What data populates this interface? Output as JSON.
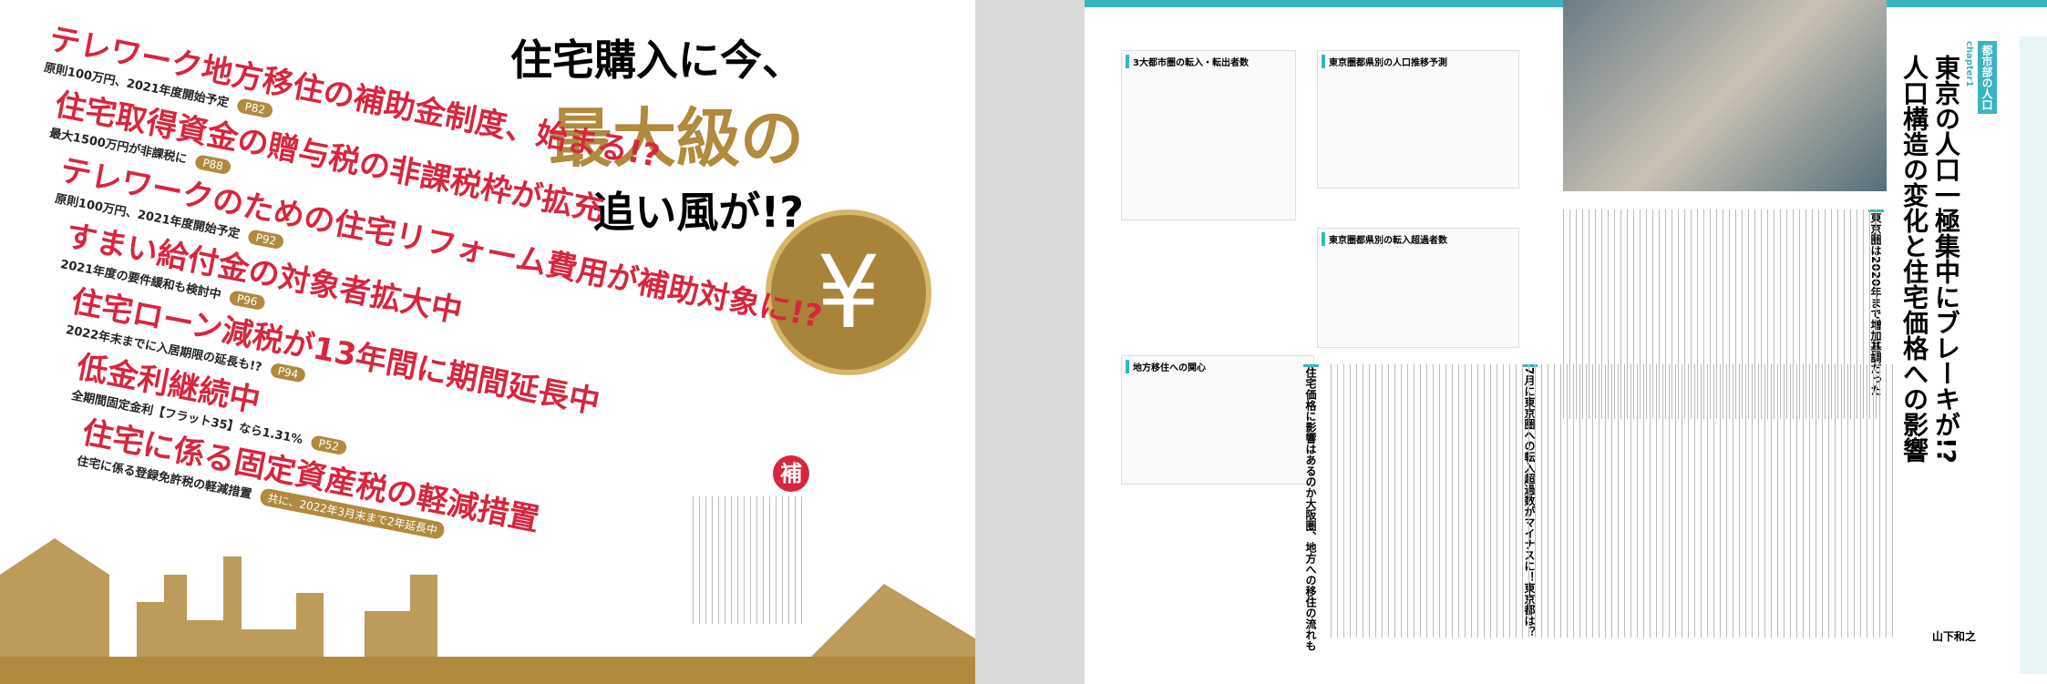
{
  "left_page": {
    "title": [
      "住宅購入に今、",
      "最大級の",
      "追い風が!?"
    ],
    "headlines": [
      {
        "title": "テレワーク地方移住の補助金制度、始まる!?",
        "lead": "原則100万円、2021年度開始予定",
        "page": "P82"
      },
      {
        "title": "住宅取得資金の贈与税の非課税枠が拡充",
        "lead": "最大1500万円が非課税に",
        "page": "P88"
      },
      {
        "title": "テレワークのための住宅リフォーム費用が補助対象に!?",
        "lead": "原則100万円、2021年度開始予定",
        "page": "P92"
      },
      {
        "title": "すまい給付金の対象者拡大中",
        "lead": "2021年度の要件緩和も検討中",
        "page": "P96"
      },
      {
        "title": "住宅ローン減税が13年間に期間延長中",
        "lead": "2022年末までに入居期限の延長も!?",
        "page": "P94"
      },
      {
        "title": "低金利継続中",
        "lead": "全期間固定金利【フラット35】なら1.31%",
        "page": "P52"
      },
      {
        "title": "住宅に係る固定資産税の軽減措置",
        "lead": "住宅に係る登録免許税の軽減措置",
        "page": "共に、2022年3月末まで2年延長中"
      }
    ],
    "coin": "¥",
    "badge": "補"
  },
  "right_page": {
    "chapter": "chapter1",
    "section": "都市部の人口",
    "headline": "東京の人口一極集中にブレーキが!?",
    "subhead": "人口構造の変化と住宅価格への影響",
    "charts": [
      "3大都市圏の転入・転出者数",
      "東京圏都県別の人口推移予測",
      "東京圏都県別の転入超過者数",
      "地方移住への関心"
    ],
    "subheads": [
      "東京圏は2020年まで増加基調だった",
      "7月に東京圏への転入超過数がマイナスに！東京都は？",
      "住宅価格に影響はあるのか大阪圏、地方への移住の流れも"
    ],
    "author": "山下和之"
  }
}
